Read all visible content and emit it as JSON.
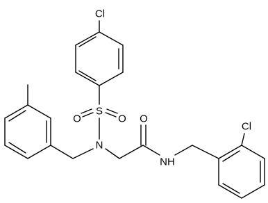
{
  "atoms": [
    {
      "label": "Cl"
    },
    {
      "label": "S"
    },
    {
      "label": "O"
    },
    {
      "label": "O"
    },
    {
      "label": "N"
    },
    {
      "label": "O"
    },
    {
      "label": "NH"
    },
    {
      "label": "Cl"
    }
  ]
}
